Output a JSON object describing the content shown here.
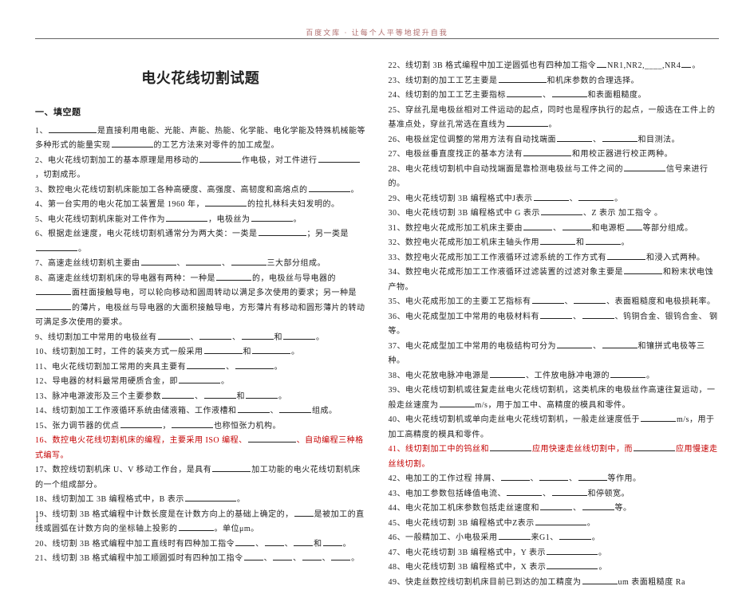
{
  "watermark": "百度文库 · 让每个人平等地提升自我",
  "title": "电火花线切割试题",
  "section1": "一、填空题",
  "col1": [
    {
      "n": "1",
      "t": "________是直接利用电能、光能、声能、热能、化学能、电化学能及特殊机械能等多种形式的能量实现________的工艺方法来对零件的加工成型。",
      "blanks": [
        60,
        52
      ]
    },
    {
      "n": "2",
      "t": "电火花线切割加工的基本原理是用移动的________作电极，对工件进行________，切割成形。",
      "blanks": [
        52,
        52
      ]
    },
    {
      "n": "3",
      "t": "数控电火花线切割机床能加工各种高硬度、高强度、高韧度和高熔点的________。",
      "blanks": [
        52
      ]
    },
    {
      "n": "4",
      "t": "第一台实用的电火花加工装置是 1960 年，________的拉扎林科夫妇发明的。",
      "blanks": [
        52
      ]
    },
    {
      "n": "5",
      "t": "电火花线切割机床能对工件作为________，电极丝为________。",
      "blanks": [
        52,
        52
      ]
    },
    {
      "n": "6",
      "t": "根据走丝速度，电火花线切割机通常分为两大类：一类是________；另一类是________。",
      "blanks": [
        60,
        52
      ]
    },
    {
      "n": "7",
      "t": "高速走丝线切割机主要由________、________、________三大部分组成。",
      "blanks": [
        44,
        44,
        44
      ]
    },
    {
      "n": "8",
      "t": "高速走丝线切割机床的导电器有两种：一种是________的，电极丝与导电器的________面柱面接触导电，可以轮向移动和圆周转动以满足多次使用的要求；另一种是________的薄片，电极丝与导电器的大面积接触导电，方形薄片有移动和圆形薄片的转动可满足多次使用的要求。",
      "blanks": [
        44,
        44,
        44
      ]
    },
    {
      "n": "9",
      "t": "线切割加工中常用的电极丝有________、________、________和________。",
      "blanks": [
        40,
        40,
        40,
        40
      ]
    },
    {
      "n": "10",
      "t": "线切割加工时，工件的装夹方式一般采用________和________。",
      "blanks": [
        48,
        48
      ]
    },
    {
      "n": "11",
      "t": "电火花线切割加工常用的夹具主要有________、________。",
      "blanks": [
        48,
        48
      ]
    },
    {
      "n": "12",
      "t": "导电器的材料最常用硬质合金，即________。",
      "blanks": [
        52
      ]
    },
    {
      "n": "13",
      "t": "脉冲电源波形及三个主要参数________、________和________。",
      "blanks": [
        40,
        40,
        40
      ]
    },
    {
      "n": "14",
      "t": "线切割加工工作液循环系统由储液箱、工作液槽和________、________组成。",
      "blanks": [
        40,
        40
      ]
    },
    {
      "n": "15",
      "t": "张力调节器的优点________，________也称恒张力机构。",
      "blanks": [
        52,
        52
      ]
    },
    {
      "n": "16",
      "t": "数控电火花线切割机床的编程，主要采用  ISO 编程、________、自动编程三种格式编写。",
      "blanks": [
        60
      ],
      "red": true
    },
    {
      "n": "17",
      "t": "数控线切割机床 U、V 移动工作台，是具有________加工功能的电火花线切割机床的一个组成部分。",
      "blanks": [
        48
      ]
    },
    {
      "n": "18",
      "t": "线切割加工 3B 编程格式中，B 表示________。",
      "blanks": [
        64
      ]
    },
    {
      "n": "19",
      "t": "线切割 3B 格式编程中计数长度是在计数方向上的基础上确定的，________是被加工的直线或圆弧在计数方向的坐标轴上投影的________。单位μm。",
      "blanks": [
        24,
        44
      ]
    },
    {
      "n": "20",
      "t": "线切割 3B 格式编程中加工直线时有四种加工指令________、________、________和________。",
      "blanks": [
        24,
        24,
        24,
        24
      ]
    },
    {
      "n": "21",
      "t": "线切割 3B 格式编程中加工顺圆弧时有四种加工指令________、________、________、________。",
      "blanks": [
        24,
        24,
        24,
        24
      ]
    }
  ],
  "col2": [
    {
      "n": "22",
      "t": "线切割 3B 格式编程中加工逆圆弧也有四种加工指令________NR1,NR2,____,NR4________。",
      "blanks": [
        12,
        12,
        12
      ]
    },
    {
      "n": "23",
      "t": "线切割的加工工艺主要是________和机床参数的合理选择。",
      "blanks": [
        60
      ]
    },
    {
      "n": "24",
      "t": "线切割的加工工艺主要指标________、________和表面粗糙度。",
      "blanks": [
        44,
        44
      ]
    },
    {
      "n": "25",
      "t": "穿丝孔是电极丝相对工件运动的起点，同时也是程序执行的起点，一般选在工件上的基准点处，穿丝孔常选在直线为________。",
      "blanks": [
        52
      ]
    },
    {
      "n": "26",
      "t": "电极丝定位调整的常用方法有自动找端面________、________和目测法。",
      "blanks": [
        44,
        44
      ]
    },
    {
      "n": "27",
      "t": "电极丝垂直度找正的基本方法有________和用校正器进行校正两种。",
      "blanks": [
        60
      ]
    },
    {
      "n": "28",
      "t": "电火花线切割机中自动找端面是靠检测电极丝与工件之间的________信号来进行的。",
      "blanks": [
        52
      ]
    },
    {
      "n": "29",
      "t": "电火花线切割 3B 编程格式中J表示________、________。",
      "blanks": [
        44,
        44
      ]
    },
    {
      "n": "30",
      "t": "电火花线切割 3B 编程格式中 G 表示________、Z 表示  加工指令 。",
      "blanks": [
        52
      ]
    },
    {
      "n": "31",
      "t": "数控电火花成形加工机床主要由________、________和电源柜________等部分组成。",
      "blanks": [
        36,
        36,
        20
      ]
    },
    {
      "n": "32",
      "t": "数控电火花成形加工机床主轴头作用________和________。",
      "blanks": [
        44,
        44
      ]
    },
    {
      "n": "33",
      "t": "数控电火花成形加工工作液循环过滤系统的工作方式有________和浸入式两种。",
      "blanks": [
        48
      ]
    },
    {
      "n": "34",
      "t": "数控电火花成形加工工作液循环过滤装置的过滤对象主要是________和粉末状电蚀产物。",
      "blanks": [
        48
      ]
    },
    {
      "n": "35",
      "t": "电火花成形加工的主要工艺指标有________、________、表面粗糙度和电极损耗率。",
      "blanks": [
        40,
        40
      ]
    },
    {
      "n": "36",
      "t": "电火花成型加工中常用的电极材料有________、________、钨铜合金、银钨合金、  钢等。",
      "blanks": [
        40,
        40
      ]
    },
    {
      "n": "37",
      "t": "电火花成型加工中常用的电极结构可分为________、________和镶拼式电极等三种。",
      "blanks": [
        44,
        44
      ]
    },
    {
      "n": "38",
      "t": "电火花放电脉冲电源是________、工件放电脉冲电源的________。",
      "blanks": [
        44,
        44
      ]
    },
    {
      "n": "39",
      "t": "电火花线切割机或往复走丝电火花线切割机，这类机床的电极丝作高速往复运动，一般走丝速度为________m/s，用于加工中、高精度的模具和零件。",
      "blanks": [
        44
      ]
    },
    {
      "n": "40",
      "t": "电火花线切割机或单向走丝电火花线切割机，一般走丝速度低于________m/s，用于加工高精度的模具和零件。",
      "blanks": [
        44
      ]
    },
    {
      "n": "41",
      "t": "线切割加工中的钨丝和________应用快速走丝线切割中，而________应用慢速走丝线切割。",
      "blanks": [
        52,
        52
      ],
      "red": true
    },
    {
      "n": "42",
      "t": "电加工的工作过程  排屑、________、________、________等作用。",
      "blanks": [
        36,
        36,
        36
      ]
    },
    {
      "n": "43",
      "t": "电加工参数包括峰值电流、________、________和停顿宽。",
      "blanks": [
        44,
        44
      ]
    },
    {
      "n": "44",
      "t": "电火花加工机床参数包括走丝速度和________、________等。",
      "blanks": [
        40,
        40
      ]
    },
    {
      "n": "45",
      "t": "电火花线切割 3B 编程格式中Z表示________。",
      "blanks": [
        64
      ]
    },
    {
      "n": "46",
      "t": "一般精加工、小电极采用________来G1、________。",
      "blanks": [
        40,
        40
      ]
    },
    {
      "n": "47",
      "t": "电火花线切割 3B 编程格式中，Y 表示________。",
      "blanks": [
        64
      ]
    },
    {
      "n": "48",
      "t": "电火花线切割 3B 编程格式中，X 表示________。",
      "blanks": [
        64
      ]
    },
    {
      "n": "49",
      "t": "快走丝数控线切割机床目前已到达的加工精度为________um  表面粗糙度 Ra",
      "blanks": [
        44
      ]
    }
  ],
  "footnum": "1",
  "blankColor": "#222",
  "red": "#c40000"
}
